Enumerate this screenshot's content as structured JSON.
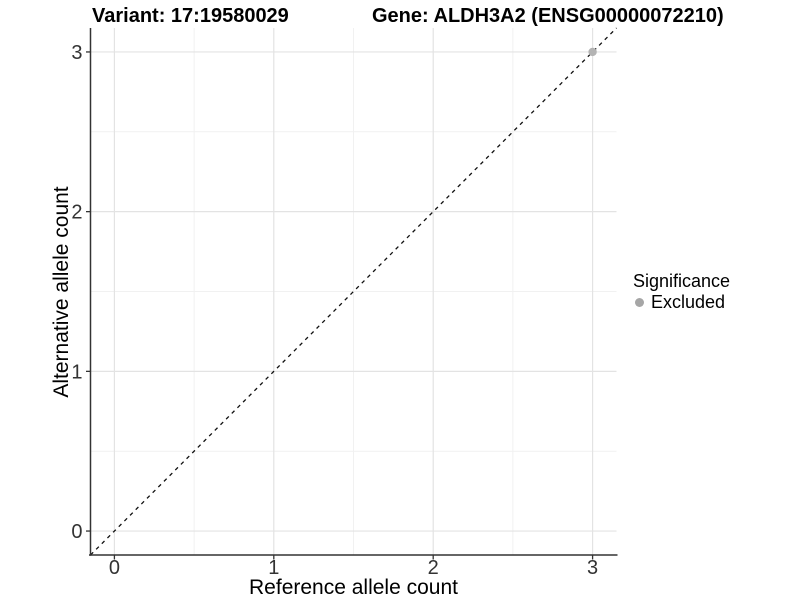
{
  "header": {
    "variant_title": "Variant: 17:19580029",
    "gene_title": "Gene: ALDH3A2 (ENSG00000072210)"
  },
  "legend": {
    "title": "Significance",
    "items": [
      {
        "label": "Excluded",
        "color": "#a6a6a6"
      }
    ]
  },
  "chart_data": {
    "type": "scatter",
    "title_left": "Variant: 17:19580029",
    "title_right": "Gene: ALDH3A2 (ENSG00000072210)",
    "xlabel": "Reference allele count",
    "ylabel": "Alternative allele count",
    "xlim": [
      -0.15,
      3.15
    ],
    "ylim": [
      -0.15,
      3.15
    ],
    "x_ticks": [
      0,
      1,
      2,
      3
    ],
    "y_ticks": [
      0,
      1,
      2,
      3
    ],
    "x_minor_ticks": [
      0.5,
      1.5,
      2.5
    ],
    "y_minor_ticks": [
      0.5,
      1.5,
      2.5
    ],
    "grid": "major-and-minor",
    "legend_position": "right",
    "series": [
      {
        "name": "Excluded",
        "color": "#b3b3b3",
        "points": [
          {
            "x": 3,
            "y": 3
          }
        ]
      }
    ],
    "reference_line": {
      "type": "identity",
      "slope": 1,
      "intercept": 0,
      "style": "dashed",
      "color": "#111111"
    }
  },
  "colors": {
    "background": "#ffffff",
    "grid_major": "#e3e3e3",
    "grid_minor": "#f1f1f1",
    "axis_line": "#333333",
    "tick_label": "#333333",
    "point": "#b3b3b3"
  }
}
